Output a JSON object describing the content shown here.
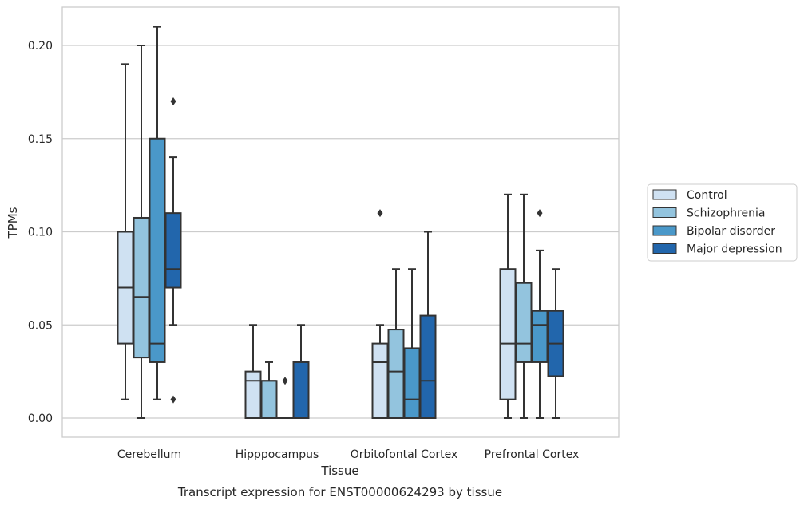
{
  "chart_data": {
    "type": "boxplot",
    "title": "Transcript expression for ENST00000624293 by tissue",
    "xlabel": "Tissue",
    "ylabel": "TPMs",
    "ylim": [
      -0.01,
      0.22
    ],
    "yticks": [
      "0.00",
      "0.05",
      "0.10",
      "0.15",
      "0.20"
    ],
    "ytick_values": [
      0,
      0.05,
      0.1,
      0.15,
      0.2
    ],
    "grid": "horizontal",
    "legend_position": "right-center",
    "categories": [
      "Cerebellum",
      "Hipppocampus",
      "Orbitofontal Cortex",
      "Prefrontal Cortex"
    ],
    "series": [
      {
        "name": "Control",
        "color": "#cfe1f2",
        "boxes": [
          {
            "whisker_low": 0.01,
            "q1": 0.04,
            "median": 0.07,
            "q3": 0.1,
            "whisker_high": 0.19,
            "outliers": []
          },
          {
            "whisker_low": 0.0,
            "q1": 0.0,
            "median": 0.02,
            "q3": 0.025,
            "whisker_high": 0.05,
            "outliers": []
          },
          {
            "whisker_low": 0.0,
            "q1": 0.0,
            "median": 0.03,
            "q3": 0.04,
            "whisker_high": 0.05,
            "outliers": [
              0.11
            ]
          },
          {
            "whisker_low": 0.0,
            "q1": 0.01,
            "median": 0.04,
            "q3": 0.08,
            "whisker_high": 0.12,
            "outliers": []
          }
        ]
      },
      {
        "name": "Schizophrenia",
        "color": "#93c4de",
        "boxes": [
          {
            "whisker_low": 0.0,
            "q1": 0.0325,
            "median": 0.065,
            "q3": 0.1075,
            "whisker_high": 0.2,
            "outliers": []
          },
          {
            "whisker_low": 0.0,
            "q1": 0.0,
            "median": 0.02,
            "q3": 0.02,
            "whisker_high": 0.03,
            "outliers": []
          },
          {
            "whisker_low": 0.0,
            "q1": 0.0,
            "median": 0.025,
            "q3": 0.0475,
            "whisker_high": 0.08,
            "outliers": []
          },
          {
            "whisker_low": 0.0,
            "q1": 0.03,
            "median": 0.04,
            "q3": 0.0725,
            "whisker_high": 0.12,
            "outliers": []
          }
        ]
      },
      {
        "name": "Bipolar disorder",
        "color": "#4a98c9",
        "boxes": [
          {
            "whisker_low": 0.01,
            "q1": 0.03,
            "median": 0.04,
            "q3": 0.15,
            "whisker_high": 0.21,
            "outliers": []
          },
          {
            "whisker_low": 0.0,
            "q1": 0.0,
            "median": 0.0,
            "q3": 0.0,
            "whisker_high": 0.0,
            "outliers": [
              0.02
            ]
          },
          {
            "whisker_low": 0.0,
            "q1": 0.0,
            "median": 0.01,
            "q3": 0.0375,
            "whisker_high": 0.08,
            "outliers": []
          },
          {
            "whisker_low": 0.0,
            "q1": 0.03,
            "median": 0.05,
            "q3": 0.0575,
            "whisker_high": 0.09,
            "outliers": [
              0.11
            ]
          }
        ]
      },
      {
        "name": "Major depression",
        "color": "#2266ac",
        "boxes": [
          {
            "whisker_low": 0.05,
            "q1": 0.07,
            "median": 0.08,
            "q3": 0.11,
            "whisker_high": 0.14,
            "outliers": [
              0.17,
              0.01
            ]
          },
          {
            "whisker_low": 0.0,
            "q1": 0.0,
            "median": 0.0,
            "q3": 0.03,
            "whisker_high": 0.05,
            "outliers": []
          },
          {
            "whisker_low": 0.0,
            "q1": 0.0,
            "median": 0.02,
            "q3": 0.055,
            "whisker_high": 0.1,
            "outliers": []
          },
          {
            "whisker_low": 0.0,
            "q1": 0.0225,
            "median": 0.04,
            "q3": 0.0575,
            "whisker_high": 0.08,
            "outliers": []
          }
        ]
      }
    ],
    "line_color": "#333333",
    "grid_color": "#cccccc"
  }
}
